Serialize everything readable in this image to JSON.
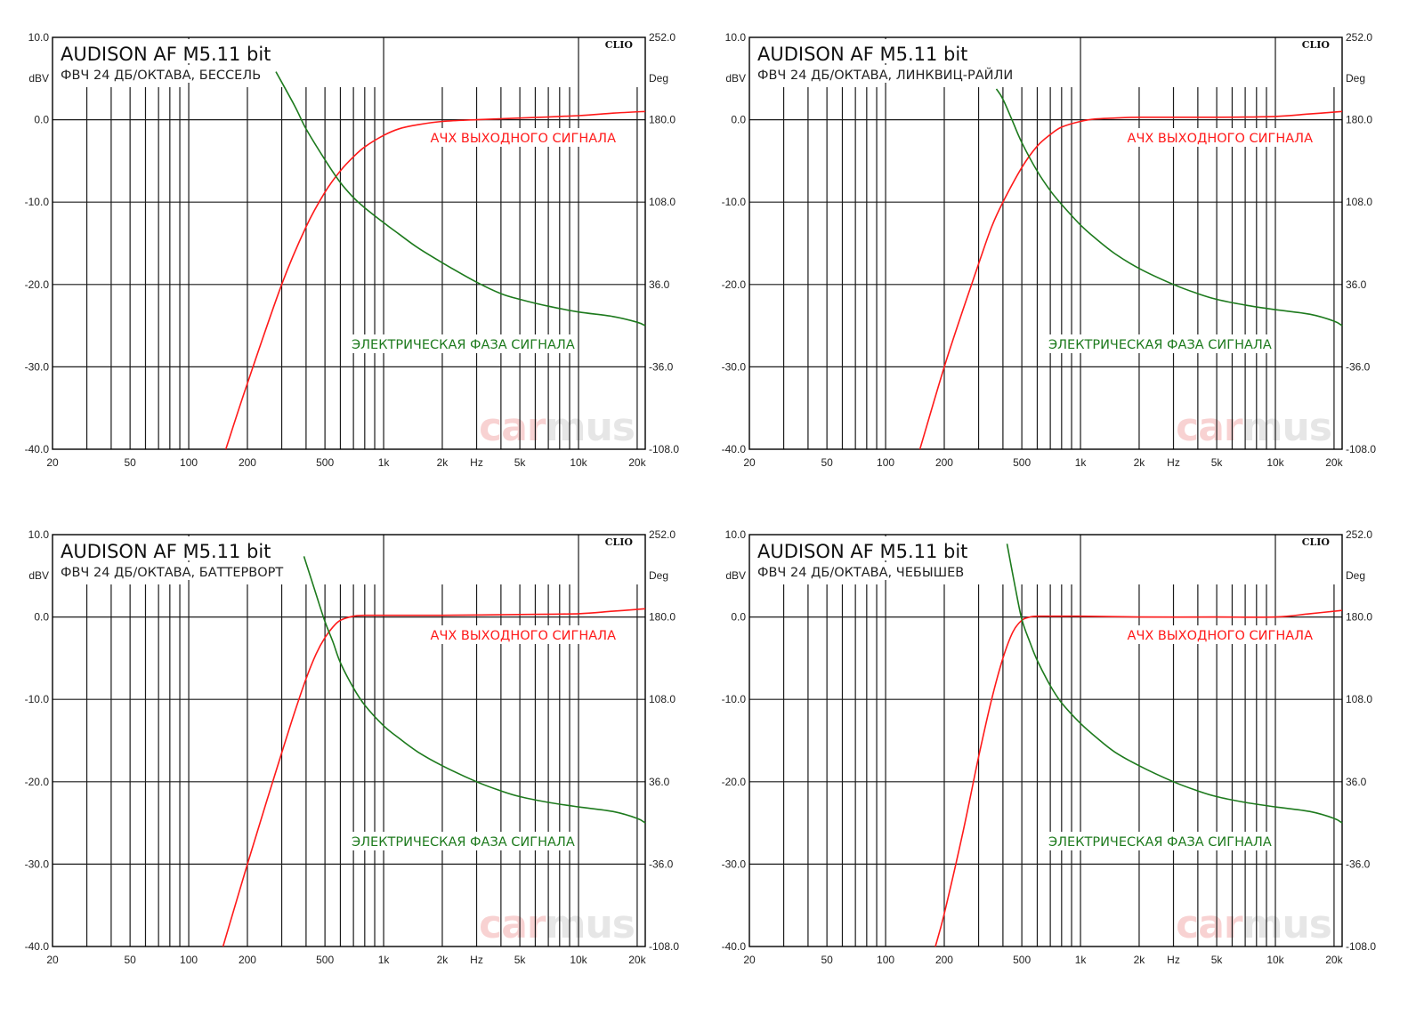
{
  "colors": {
    "magnitude": "#ff1a1a",
    "phase": "#1d7a1d",
    "grid": "#1a1a1a",
    "watermark_a": "#f8d2d2",
    "watermark_b": "#e6e6e6"
  },
  "shared_axes": {
    "x_ticks": [
      {
        "v": 20,
        "label": "20"
      },
      {
        "v": 50,
        "label": "50"
      },
      {
        "v": 100,
        "label": "100"
      },
      {
        "v": 200,
        "label": "200"
      },
      {
        "v": 500,
        "label": "500"
      },
      {
        "v": 1000,
        "label": "1k"
      },
      {
        "v": 2000,
        "label": "2k"
      },
      {
        "v": 5000,
        "label": "5k"
      },
      {
        "v": 10000,
        "label": "10k"
      },
      {
        "v": 20000,
        "label": "20k"
      }
    ],
    "x_unit_label": "Hz",
    "y_left_ticks": [
      "10.0",
      "0.0",
      "-10.0",
      "-20.0",
      "-30.0",
      "-40.0"
    ],
    "y_left_unit": "dBV",
    "y_right_ticks": [
      "252.0",
      "180.0",
      "108.0",
      "36.0",
      "-36.0",
      "-108.0"
    ],
    "y_right_unit": "Deg",
    "brand": "CLIO",
    "watermark": {
      "part1": "car",
      "part2": "mus"
    }
  },
  "chart_data": [
    {
      "type": "line",
      "title": "AUDISON AF M5.11 bit",
      "subtitle": "ФВЧ 24 ДБ/ОКТАВА, БЕССЕЛЬ",
      "xscale": "log",
      "xlim": [
        20,
        22000
      ],
      "ylim": [
        -40,
        10
      ],
      "ylim_right": [
        -108,
        252
      ],
      "grid": true,
      "series": [
        {
          "name": "АЧХ ВЫХОДНОГО СИГНАЛА",
          "axis": "left",
          "x": [
            155,
            200,
            300,
            400,
            500,
            600,
            700,
            800,
            1000,
            1200,
            1500,
            2000,
            3000,
            5000,
            10000,
            15000,
            22000
          ],
          "y": [
            -40,
            -32,
            -20,
            -13,
            -8.8,
            -6.2,
            -4.5,
            -3.3,
            -1.9,
            -1.1,
            -0.6,
            -0.2,
            0.0,
            0.2,
            0.5,
            0.8,
            1.0
          ]
        },
        {
          "name": "ЭЛЕКТРИЧЕСКАЯ ФАЗА СИГНАЛА",
          "axis": "right",
          "x": [
            280,
            350,
            400,
            500,
            600,
            700,
            800,
            1000,
            1200,
            1500,
            2000,
            3000,
            4000,
            5000,
            7000,
            10000,
            15000,
            20000,
            22000
          ],
          "y": [
            222,
            192,
            172,
            145,
            125,
            112,
            103,
            90,
            80,
            68,
            55,
            38,
            28,
            23,
            17,
            12,
            8,
            3,
            0
          ]
        }
      ]
    },
    {
      "type": "line",
      "title": "AUDISON AF M5.11 bit",
      "subtitle": "ФВЧ 24 ДБ/ОКТАВА, ЛИНКВИЦ-РАЙЛИ",
      "xscale": "log",
      "xlim": [
        20,
        22000
      ],
      "ylim": [
        -40,
        10
      ],
      "ylim_right": [
        -108,
        252
      ],
      "grid": true,
      "series": [
        {
          "name": "АЧХ ВЫХОДНОГО СИГНАЛА",
          "axis": "left",
          "x": [
            150,
            200,
            250,
            300,
            350,
            400,
            500,
            600,
            700,
            800,
            1000,
            1200,
            1500,
            2000,
            5000,
            10000,
            15000,
            22000
          ],
          "y": [
            -40,
            -30,
            -23,
            -17.5,
            -13,
            -10,
            -5.8,
            -3.2,
            -1.8,
            -0.9,
            -0.2,
            0.1,
            0.2,
            0.3,
            0.3,
            0.4,
            0.7,
            1.0
          ]
        },
        {
          "name": "ЭЛЕКТРИЧЕСКАЯ ФАЗА СИГНАЛА",
          "axis": "right",
          "x": [
            370,
            400,
            450,
            500,
            600,
            700,
            800,
            1000,
            1200,
            1500,
            2000,
            3000,
            4000,
            5000,
            7000,
            10000,
            15000,
            20000,
            22000
          ],
          "y": [
            207,
            198,
            178,
            160,
            135,
            118,
            106,
            88,
            76,
            63,
            50,
            36,
            28,
            23,
            18,
            14,
            10,
            4,
            0
          ]
        }
      ]
    },
    {
      "type": "line",
      "title": "AUDISON AF M5.11 bit",
      "subtitle": "ФВЧ 24 ДБ/ОКТАВА, БАТТЕРВОРТ",
      "xscale": "log",
      "xlim": [
        20,
        22000
      ],
      "ylim": [
        -40,
        10
      ],
      "ylim_right": [
        -108,
        252
      ],
      "grid": true,
      "series": [
        {
          "name": "АЧХ ВЫХОДНОГО СИГНАЛА",
          "axis": "left",
          "x": [
            150,
            200,
            250,
            300,
            350,
            400,
            450,
            500,
            550,
            600,
            700,
            800,
            1000,
            2000,
            5000,
            10000,
            15000,
            22000
          ],
          "y": [
            -40,
            -30,
            -22.5,
            -16.5,
            -11.5,
            -7.5,
            -4.5,
            -2.5,
            -1.2,
            -0.4,
            0.1,
            0.2,
            0.2,
            0.2,
            0.3,
            0.4,
            0.7,
            1.0
          ]
        },
        {
          "name": "ЭЛЕКТРИЧЕСКАЯ ФАЗА СИГНАЛА",
          "axis": "right",
          "x": [
            390,
            450,
            500,
            550,
            600,
            700,
            800,
            1000,
            1200,
            1500,
            2000,
            3000,
            4000,
            5000,
            7000,
            10000,
            15000,
            20000,
            22000
          ],
          "y": [
            233,
            200,
            176,
            158,
            140,
            118,
            103,
            85,
            74,
            62,
            50,
            36,
            28,
            23,
            18,
            14,
            10,
            4,
            0
          ]
        }
      ]
    },
    {
      "type": "line",
      "title": "AUDISON AF M5.11 bit",
      "subtitle": "ФВЧ 24 ДБ/ОКТАВА, ЧЕБЫШЕВ",
      "xscale": "log",
      "xlim": [
        20,
        22000
      ],
      "ylim": [
        -40,
        10
      ],
      "ylim_right": [
        -108,
        252
      ],
      "grid": true,
      "series": [
        {
          "name": "АЧХ ВЫХОДНОГО СИГНАЛА",
          "axis": "left",
          "x": [
            180,
            200,
            250,
            300,
            350,
            400,
            450,
            500,
            550,
            600,
            800,
            1000,
            2000,
            5000,
            10000,
            15000,
            22000
          ],
          "y": [
            -40,
            -36,
            -26,
            -17,
            -10,
            -5,
            -1.8,
            -0.4,
            0.0,
            0.1,
            0.1,
            0.1,
            0.0,
            0.0,
            0.0,
            0.4,
            0.8
          ]
        },
        {
          "name": "ЭЛЕКТРИЧЕСКАЯ ФАЗА СИГНАЛА",
          "axis": "right",
          "x": [
            420,
            460,
            500,
            550,
            600,
            700,
            800,
            1000,
            1200,
            1500,
            2000,
            3000,
            4000,
            5000,
            7000,
            10000,
            15000,
            20000,
            22000
          ],
          "y": [
            244,
            208,
            178,
            158,
            142,
            120,
            105,
            87,
            75,
            62,
            50,
            36,
            28,
            23,
            18,
            14,
            10,
            4,
            0
          ]
        }
      ]
    }
  ]
}
